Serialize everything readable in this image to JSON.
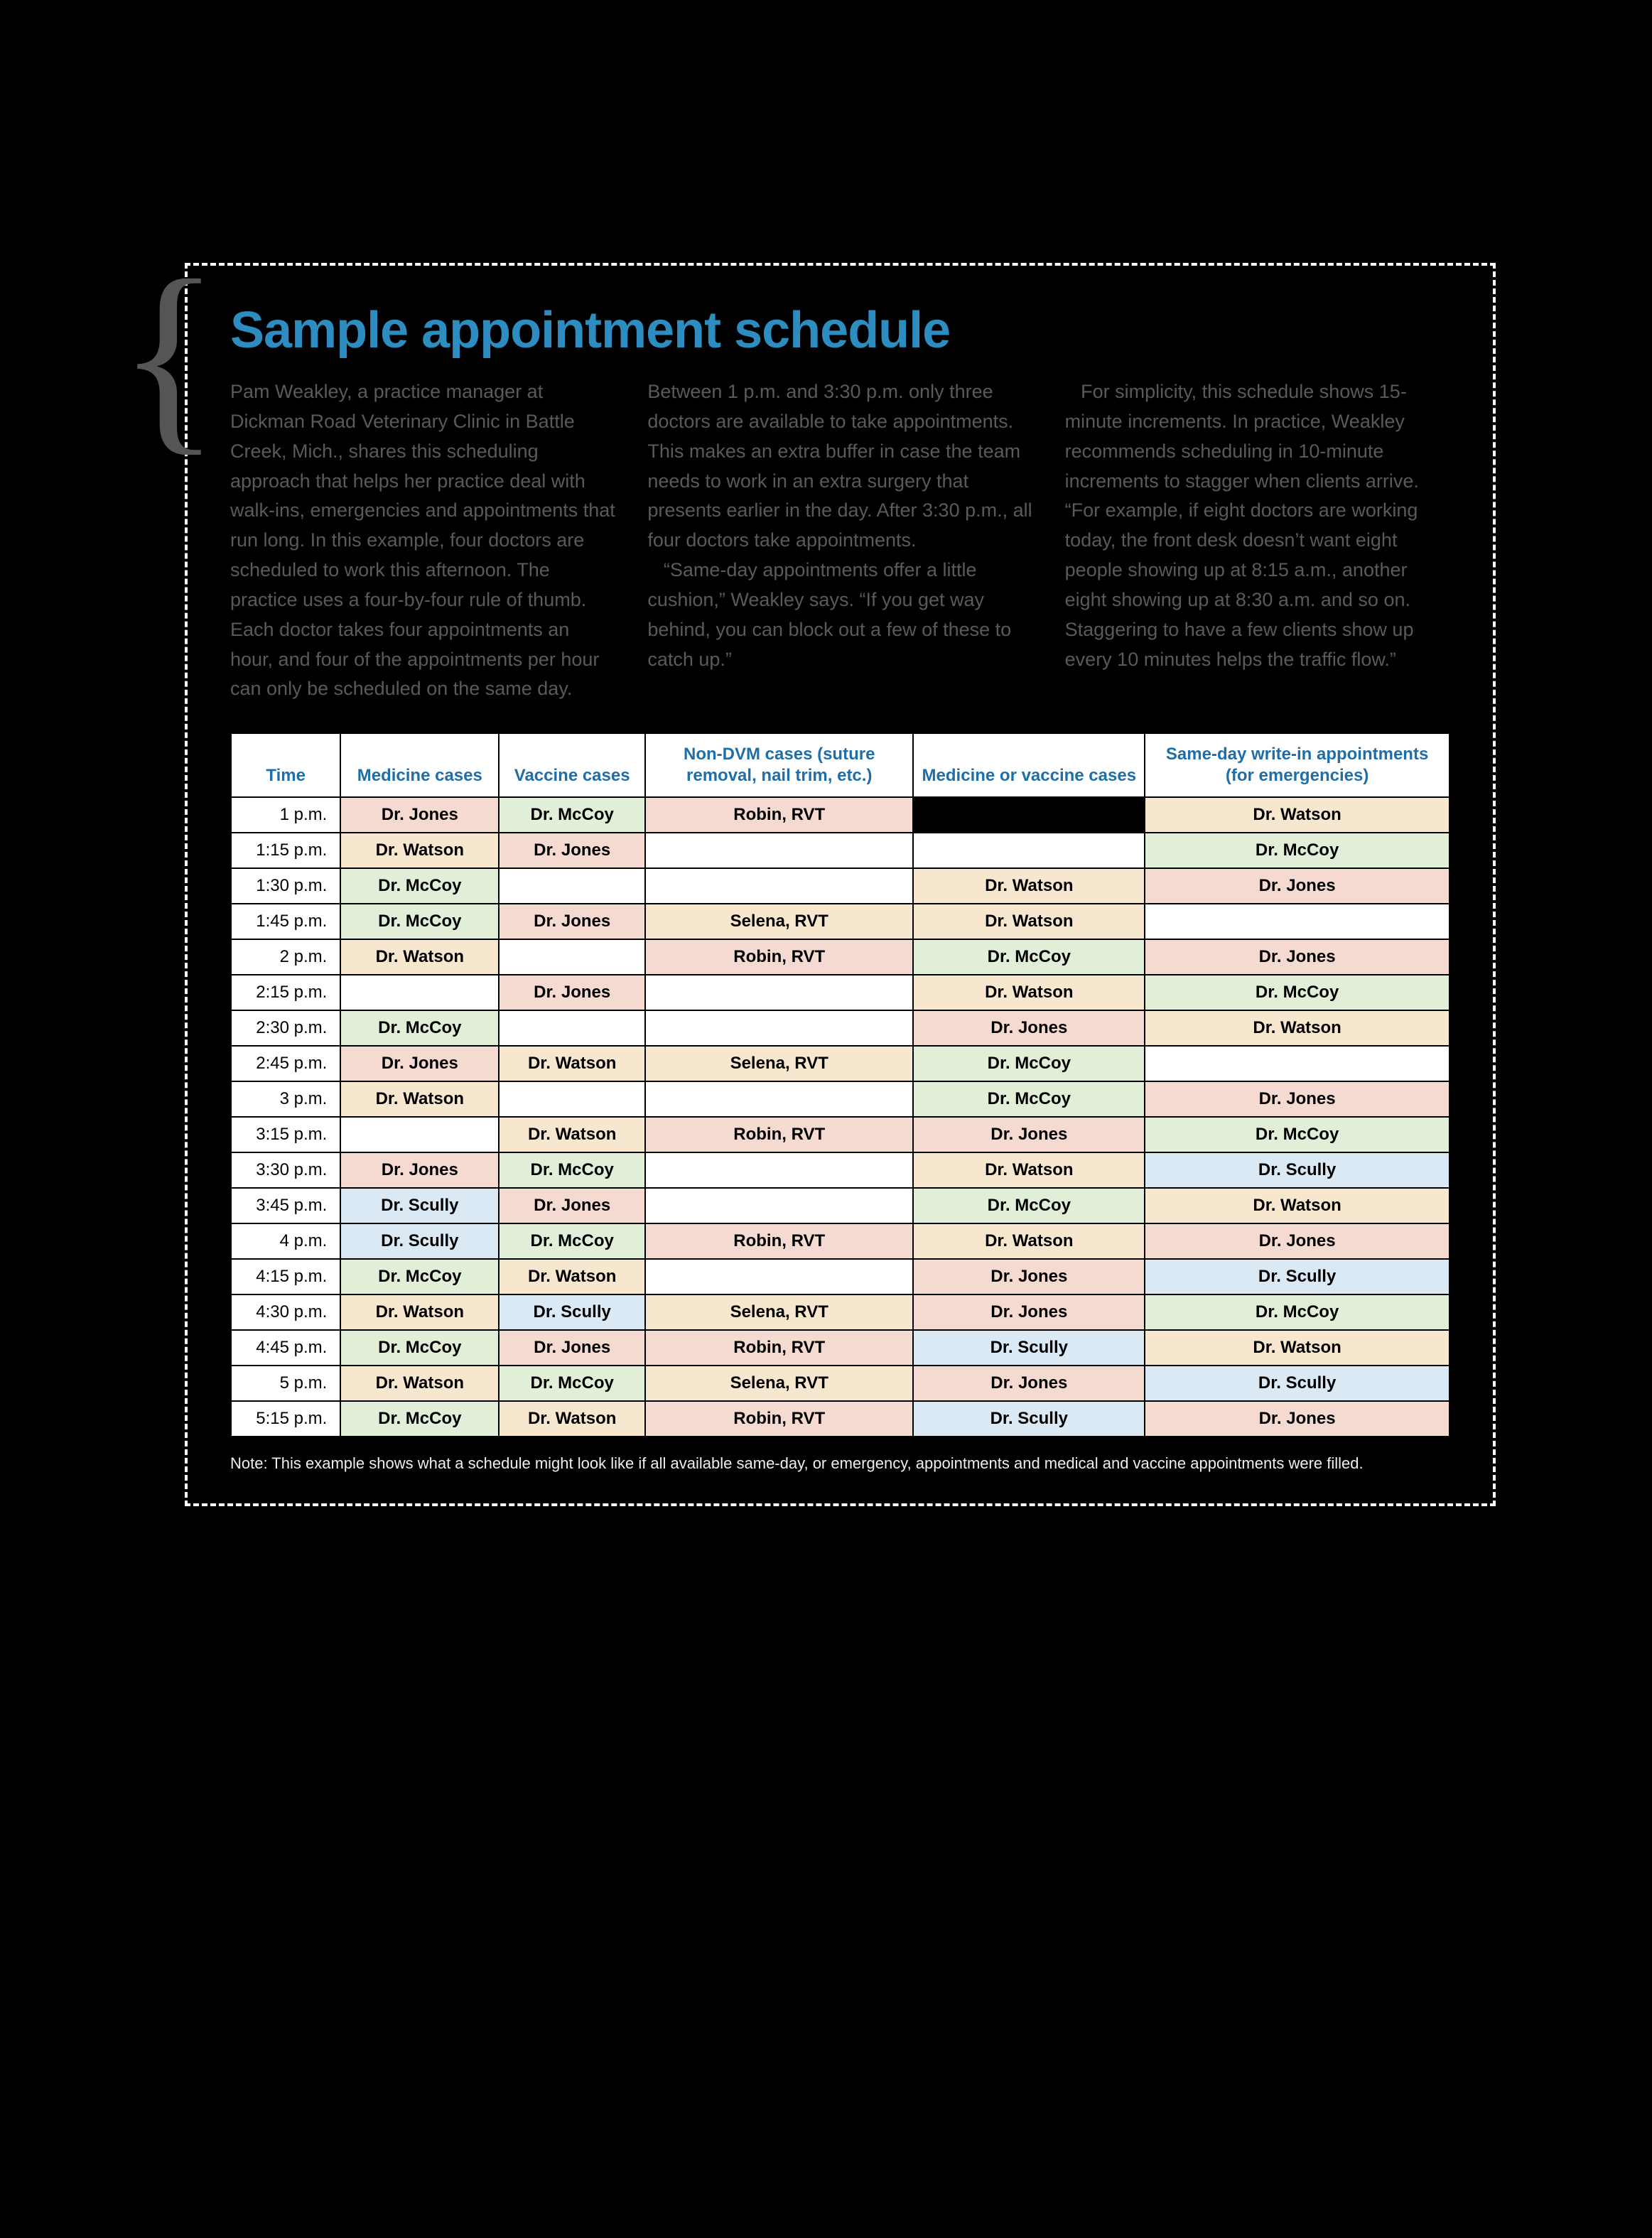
{
  "title": "Sample appointment schedule",
  "brace": "{",
  "intro_html": "<p>Pam Weakley, a practice manager at Dickman Road Veterinary Clinic in Battle Creek, Mich., shares this scheduling approach that helps her practice deal with walk-ins, emergencies and appointments that run long. In this example, four doctors are scheduled to work this afternoon. The practice uses a four-by-four rule of thumb. Each doctor takes four appointments an hour, and four of the appointments per hour can only be scheduled on the same day. Between 1 p.m. and 3:30 p.m. only three doctors are available to take appointments. This makes an extra buffer in case the team needs to work in an extra surgery that presents earlier in the day. After 3:30 p.m., all four doctors take appointments.</p><p>&nbsp;&nbsp;&nbsp;&ldquo;Same-day appointments offer a little cushion,&rdquo; Weakley says. &ldquo;If you get way behind, you can block out a few of these to catch up.&rdquo;</p><p>&nbsp;&nbsp;&nbsp;For simplicity, this schedule shows 15-minute increments. In practice, Weakley recommends scheduling in 10-minute increments to stagger when clients arrive. &ldquo;For example, if eight doctors are working today, the front desk doesn&rsquo;t want eight people showing up at 8:15 a.m., another eight showing up at 8:30 a.m. and so on. Staggering to have a few clients show up every 10 minutes helps the traffic flow.&rdquo;</p>",
  "colors": {
    "title": "#2d8cc0",
    "header_text": "#1f6ea8",
    "border": "#000000",
    "bg_red": "#f5dad2",
    "bg_orange": "#f8e7cf",
    "bg_green": "#e2efd8",
    "bg_blue": "#dbe9f4",
    "fg_red": "#c23e33",
    "fg_orange": "#d7852a",
    "fg_green": "#3d9848",
    "fg_blue": "#1f6ea8",
    "page_bg": "#000000"
  },
  "typography": {
    "title_fontsize_pt": 54,
    "body_fontsize_pt": 20,
    "table_fontsize_pt": 18,
    "note_fontsize_pt": 16
  },
  "table": {
    "headers": [
      "Time",
      "Medicine cases",
      "Vaccine cases",
      "Non-DVM cases (suture removal, nail trim, etc.)",
      "Medicine or vaccine cases",
      "Same-day write-in appointments (for emergencies)"
    ],
    "column_widths_pct": [
      9,
      13,
      12,
      22,
      19,
      25
    ],
    "rows": [
      {
        "time": "1 p.m.",
        "cells": [
          {
            "text": "Dr. Jones",
            "bg": "red",
            "fg": "red"
          },
          {
            "text": "Dr. McCoy",
            "bg": "green",
            "fg": "green"
          },
          {
            "text": "Robin, RVT",
            "bg": "red",
            "fg": "red"
          },
          {
            "text": "",
            "bg": "black",
            "fg": ""
          },
          {
            "text": "Dr. Watson",
            "bg": "orange",
            "fg": "orange"
          }
        ]
      },
      {
        "time": "1:15 p.m.",
        "cells": [
          {
            "text": "Dr. Watson",
            "bg": "orange",
            "fg": "orange"
          },
          {
            "text": "Dr. Jones",
            "bg": "red",
            "fg": "red"
          },
          {
            "text": "",
            "bg": "",
            "fg": ""
          },
          {
            "text": "",
            "bg": "",
            "fg": ""
          },
          {
            "text": "Dr. McCoy",
            "bg": "green",
            "fg": "green"
          }
        ]
      },
      {
        "time": "1:30 p.m.",
        "cells": [
          {
            "text": "Dr. McCoy",
            "bg": "green",
            "fg": "green"
          },
          {
            "text": "",
            "bg": "",
            "fg": ""
          },
          {
            "text": "",
            "bg": "",
            "fg": ""
          },
          {
            "text": "Dr. Watson",
            "bg": "orange",
            "fg": "orange"
          },
          {
            "text": "Dr. Jones",
            "bg": "red",
            "fg": "red"
          }
        ]
      },
      {
        "time": "1:45 p.m.",
        "cells": [
          {
            "text": "Dr. McCoy",
            "bg": "green",
            "fg": "green"
          },
          {
            "text": "Dr. Jones",
            "bg": "red",
            "fg": "red"
          },
          {
            "text": "Selena, RVT",
            "bg": "orange",
            "fg": "orange"
          },
          {
            "text": "Dr. Watson",
            "bg": "orange",
            "fg": "orange"
          },
          {
            "text": "",
            "bg": "",
            "fg": ""
          }
        ]
      },
      {
        "time": "2 p.m.",
        "cells": [
          {
            "text": "Dr. Watson",
            "bg": "orange",
            "fg": "orange"
          },
          {
            "text": "",
            "bg": "",
            "fg": ""
          },
          {
            "text": "Robin, RVT",
            "bg": "red",
            "fg": "red"
          },
          {
            "text": "Dr. McCoy",
            "bg": "green",
            "fg": "green"
          },
          {
            "text": "Dr. Jones",
            "bg": "red",
            "fg": "red"
          }
        ]
      },
      {
        "time": "2:15 p.m.",
        "cells": [
          {
            "text": "",
            "bg": "",
            "fg": ""
          },
          {
            "text": "Dr. Jones",
            "bg": "red",
            "fg": "red"
          },
          {
            "text": "",
            "bg": "",
            "fg": ""
          },
          {
            "text": "Dr. Watson",
            "bg": "orange",
            "fg": "orange"
          },
          {
            "text": "Dr. McCoy",
            "bg": "green",
            "fg": "green"
          }
        ]
      },
      {
        "time": "2:30 p.m.",
        "cells": [
          {
            "text": "Dr. McCoy",
            "bg": "green",
            "fg": "green"
          },
          {
            "text": "",
            "bg": "",
            "fg": ""
          },
          {
            "text": "",
            "bg": "",
            "fg": ""
          },
          {
            "text": "Dr. Jones",
            "bg": "red",
            "fg": "red"
          },
          {
            "text": "Dr. Watson",
            "bg": "orange",
            "fg": "orange"
          }
        ]
      },
      {
        "time": "2:45 p.m.",
        "cells": [
          {
            "text": "Dr. Jones",
            "bg": "red",
            "fg": "red"
          },
          {
            "text": "Dr. Watson",
            "bg": "orange",
            "fg": "orange"
          },
          {
            "text": "Selena, RVT",
            "bg": "orange",
            "fg": "orange"
          },
          {
            "text": "Dr. McCoy",
            "bg": "green",
            "fg": "green"
          },
          {
            "text": "",
            "bg": "",
            "fg": ""
          }
        ]
      },
      {
        "time": "3 p.m.",
        "cells": [
          {
            "text": "Dr. Watson",
            "bg": "orange",
            "fg": "orange"
          },
          {
            "text": "",
            "bg": "",
            "fg": ""
          },
          {
            "text": "",
            "bg": "",
            "fg": ""
          },
          {
            "text": "Dr. McCoy",
            "bg": "green",
            "fg": "green"
          },
          {
            "text": "Dr. Jones",
            "bg": "red",
            "fg": "red"
          }
        ]
      },
      {
        "time": "3:15 p.m.",
        "cells": [
          {
            "text": "",
            "bg": "",
            "fg": ""
          },
          {
            "text": "Dr. Watson",
            "bg": "orange",
            "fg": "orange"
          },
          {
            "text": "Robin, RVT",
            "bg": "red",
            "fg": "red"
          },
          {
            "text": "Dr. Jones",
            "bg": "red",
            "fg": "red"
          },
          {
            "text": "Dr. McCoy",
            "bg": "green",
            "fg": "green"
          }
        ]
      },
      {
        "time": "3:30 p.m.",
        "cells": [
          {
            "text": "Dr. Jones",
            "bg": "red",
            "fg": "red"
          },
          {
            "text": "Dr. McCoy",
            "bg": "green",
            "fg": "green"
          },
          {
            "text": "",
            "bg": "",
            "fg": ""
          },
          {
            "text": "Dr. Watson",
            "bg": "orange",
            "fg": "orange"
          },
          {
            "text": "Dr. Scully",
            "bg": "blue",
            "fg": "blue"
          }
        ]
      },
      {
        "time": "3:45 p.m.",
        "cells": [
          {
            "text": "Dr. Scully",
            "bg": "blue",
            "fg": "blue"
          },
          {
            "text": "Dr. Jones",
            "bg": "red",
            "fg": "red"
          },
          {
            "text": "",
            "bg": "",
            "fg": ""
          },
          {
            "text": "Dr. McCoy",
            "bg": "green",
            "fg": "green"
          },
          {
            "text": "Dr. Watson",
            "bg": "orange",
            "fg": "orange"
          }
        ]
      },
      {
        "time": "4 p.m.",
        "cells": [
          {
            "text": "Dr. Scully",
            "bg": "blue",
            "fg": "blue"
          },
          {
            "text": "Dr. McCoy",
            "bg": "green",
            "fg": "green"
          },
          {
            "text": "Robin, RVT",
            "bg": "red",
            "fg": "red"
          },
          {
            "text": "Dr. Watson",
            "bg": "orange",
            "fg": "orange"
          },
          {
            "text": "Dr. Jones",
            "bg": "red",
            "fg": "red"
          }
        ]
      },
      {
        "time": "4:15 p.m.",
        "cells": [
          {
            "text": "Dr. McCoy",
            "bg": "green",
            "fg": "green"
          },
          {
            "text": "Dr. Watson",
            "bg": "orange",
            "fg": "orange"
          },
          {
            "text": "",
            "bg": "",
            "fg": ""
          },
          {
            "text": "Dr. Jones",
            "bg": "red",
            "fg": "red"
          },
          {
            "text": "Dr. Scully",
            "bg": "blue",
            "fg": "blue"
          }
        ]
      },
      {
        "time": "4:30 p.m.",
        "cells": [
          {
            "text": "Dr. Watson",
            "bg": "orange",
            "fg": "orange"
          },
          {
            "text": "Dr. Scully",
            "bg": "blue",
            "fg": "blue"
          },
          {
            "text": "Selena, RVT",
            "bg": "orange",
            "fg": "orange"
          },
          {
            "text": "Dr. Jones",
            "bg": "red",
            "fg": "red"
          },
          {
            "text": "Dr. McCoy",
            "bg": "green",
            "fg": "green"
          }
        ]
      },
      {
        "time": "4:45 p.m.",
        "cells": [
          {
            "text": "Dr. McCoy",
            "bg": "green",
            "fg": "green"
          },
          {
            "text": "Dr. Jones",
            "bg": "red",
            "fg": "red"
          },
          {
            "text": "Robin, RVT",
            "bg": "red",
            "fg": "red"
          },
          {
            "text": "Dr. Scully",
            "bg": "blue",
            "fg": "blue"
          },
          {
            "text": "Dr. Watson",
            "bg": "orange",
            "fg": "orange"
          }
        ]
      },
      {
        "time": "5 p.m.",
        "cells": [
          {
            "text": "Dr. Watson",
            "bg": "orange",
            "fg": "orange"
          },
          {
            "text": "Dr. McCoy",
            "bg": "green",
            "fg": "green"
          },
          {
            "text": "Selena, RVT",
            "bg": "orange",
            "fg": "orange"
          },
          {
            "text": "Dr. Jones",
            "bg": "red",
            "fg": "red"
          },
          {
            "text": "Dr. Scully",
            "bg": "blue",
            "fg": "blue"
          }
        ]
      },
      {
        "time": "5:15 p.m.",
        "cells": [
          {
            "text": "Dr. McCoy",
            "bg": "green",
            "fg": "green"
          },
          {
            "text": "Dr. Watson",
            "bg": "orange",
            "fg": "orange"
          },
          {
            "text": "Robin, RVT",
            "bg": "red",
            "fg": "red"
          },
          {
            "text": "Dr. Scully",
            "bg": "blue",
            "fg": "blue"
          },
          {
            "text": "Dr. Jones",
            "bg": "red",
            "fg": "red"
          }
        ]
      }
    ]
  },
  "note": "Note: This example shows what a schedule might look like if all available same-day, or emergency, appointments and medical and vaccine appointments were filled."
}
